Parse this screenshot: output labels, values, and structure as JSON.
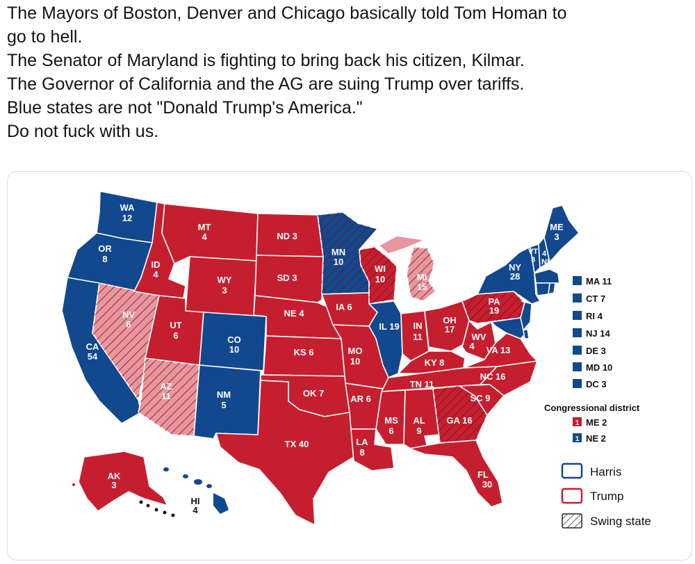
{
  "post": {
    "lines": [
      "The Mayors of Boston, Denver and Chicago basically told Tom Homan to",
      "go to hell.",
      "The Senator of Maryland is fighting to bring back his citizen, Kilmar.",
      "The Governor of California and the AG are suing Trump over tariffs.",
      "Blue states are not \"Donald Trump's America.\"",
      "Do not fuck with us."
    ]
  },
  "map": {
    "colors": {
      "harris": "#12488e",
      "trump": "#c51f2f",
      "swing_harris_shade": "#e8969e"
    },
    "states": {
      "WA": {
        "abbr": "WA",
        "ev": "12"
      },
      "OR": {
        "abbr": "OR",
        "ev": "8"
      },
      "CA": {
        "abbr": "CA",
        "ev": "54"
      },
      "NV": {
        "abbr": "NV",
        "ev": "6"
      },
      "ID": {
        "abbr": "ID",
        "ev": "4"
      },
      "MT": {
        "abbr": "MT",
        "ev": "4"
      },
      "WY": {
        "abbr": "WY",
        "ev": "3"
      },
      "UT": {
        "abbr": "UT",
        "ev": "6"
      },
      "AZ": {
        "abbr": "AZ",
        "ev": "11"
      },
      "CO": {
        "abbr": "CO",
        "ev": "10"
      },
      "NM": {
        "abbr": "NM",
        "ev": "5"
      },
      "ND": {
        "label": "ND 3"
      },
      "SD": {
        "label": "SD 3"
      },
      "NE": {
        "label": "NE 4"
      },
      "KS": {
        "label": "KS 6"
      },
      "OK": {
        "label": "OK 7"
      },
      "TX": {
        "label": "TX 40"
      },
      "MN": {
        "abbr": "MN",
        "ev": "10"
      },
      "IA": {
        "label": "IA 6"
      },
      "MO": {
        "abbr": "MO",
        "ev": "10"
      },
      "AR": {
        "label": "AR 6"
      },
      "LA": {
        "abbr": "LA",
        "ev": "8"
      },
      "WI": {
        "abbr": "WI",
        "ev": "10"
      },
      "IL": {
        "label": "IL 19"
      },
      "MI": {
        "abbr": "MI",
        "ev": "15"
      },
      "IN": {
        "abbr": "IN",
        "ev": "11"
      },
      "OH": {
        "abbr": "OH",
        "ev": "17"
      },
      "KY": {
        "label": "KY 8"
      },
      "TN": {
        "label": "TN 11"
      },
      "MS": {
        "abbr": "MS",
        "ev": "6"
      },
      "AL": {
        "abbr": "AL",
        "ev": "9"
      },
      "GA": {
        "label": "GA 16"
      },
      "FL": {
        "abbr": "FL",
        "ev": "30"
      },
      "SC": {
        "label": "SC 9"
      },
      "NC": {
        "label": "NC 16"
      },
      "VA": {
        "label": "VA 13"
      },
      "WV": {
        "abbr": "WV",
        "ev": "4"
      },
      "PA": {
        "abbr": "PA",
        "ev": "19"
      },
      "NY": {
        "abbr": "NY",
        "ev": "28"
      },
      "VT": {
        "abbr": "VT",
        "ev": "3"
      },
      "NH": {
        "ev": "4",
        "abbr": "NH"
      },
      "ME": {
        "abbr": "ME",
        "ev": "3"
      },
      "AK": {
        "abbr": "AK",
        "ev": "3"
      },
      "HI": {
        "abbr": "HI",
        "ev": "4"
      }
    },
    "small_states": [
      "MA 11",
      "CT 7",
      "RI 4",
      "NJ 14",
      "DE 3",
      "MD 10",
      "DC 3"
    ],
    "congressional": {
      "title": "Congressional district",
      "items": [
        {
          "num": "1",
          "label": "ME 2",
          "party": "trump"
        },
        {
          "num": "1",
          "label": "NE 2",
          "party": "harris"
        }
      ]
    },
    "legend": {
      "harris": "Harris",
      "trump": "Trump",
      "swing": "Swing state"
    }
  }
}
